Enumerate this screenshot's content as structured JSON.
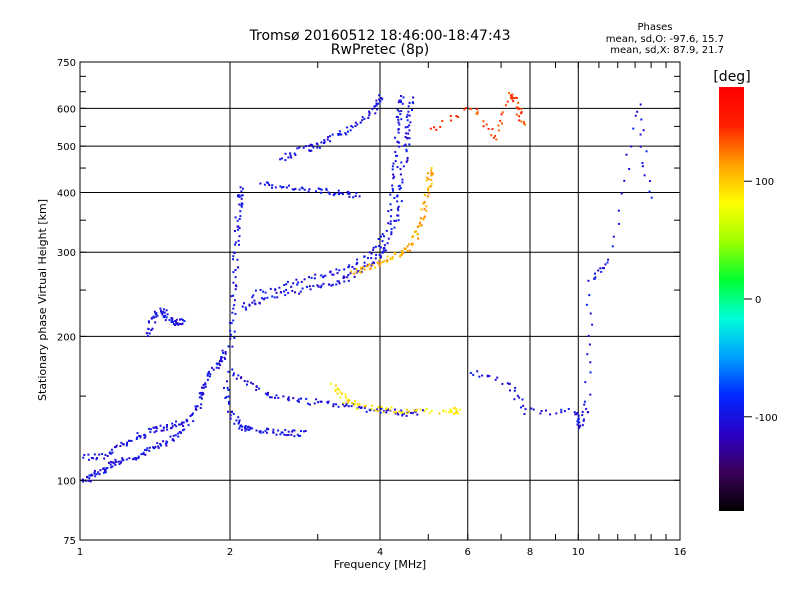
{
  "chart_data": {
    "type": "scatter",
    "title": "Tromsø 20160512 18:46:00-18:47:43",
    "subtitle": "RwPretec (8p)",
    "xlabel": "Frequency [MHz]",
    "ylabel": "Stationary phase Virtual Height [km]",
    "x_scale": "log",
    "y_scale": "log",
    "xlim": [
      1,
      16
    ],
    "ylim": [
      75,
      750
    ],
    "x_ticks": [
      "1",
      "2",
      "4",
      "6",
      "8",
      "10",
      "16"
    ],
    "y_ticks": [
      "75",
      "100",
      "200",
      "300",
      "400",
      "500",
      "600",
      "750"
    ],
    "grid": true,
    "phase_stats": {
      "heading": "Phases",
      "o_line": "mean, sd,O: -97.6, 15.7",
      "x_line": "mean, sd,X:  87.9, 21.7"
    },
    "colorbar": {
      "label": "[deg]",
      "range": [
        -180,
        180
      ],
      "ticks": [
        "100",
        "0",
        "-100"
      ],
      "colors": [
        "#000000",
        "#3b0058",
        "#2a00c8",
        "#0028ff",
        "#00a0ff",
        "#00ffd8",
        "#00ff30",
        "#a0ff00",
        "#ffff00",
        "#ffa000",
        "#ff2000",
        "#ff0000"
      ]
    },
    "traces": [
      {
        "name": "",
        "phase": -100,
        "points": [
          [
            1.0,
            100
          ],
          [
            1.05,
            102
          ],
          [
            1.1,
            105
          ],
          [
            1.15,
            108
          ],
          [
            1.2,
            110
          ],
          [
            1.3,
            113
          ],
          [
            1.4,
            117
          ],
          [
            1.5,
            121
          ],
          [
            1.6,
            128
          ],
          [
            1.7,
            140
          ],
          [
            1.75,
            152
          ],
          [
            1.8,
            165
          ],
          [
            1.9,
            178
          ],
          [
            1.95,
            185
          ]
        ]
      },
      {
        "name": "",
        "phase": -100,
        "points": [
          [
            1.0,
            112
          ],
          [
            1.1,
            113
          ],
          [
            1.2,
            118
          ],
          [
            1.3,
            124
          ],
          [
            1.4,
            128
          ],
          [
            1.5,
            130
          ],
          [
            1.6,
            133
          ]
        ]
      },
      {
        "name": "",
        "phase": -100,
        "points": [
          [
            1.35,
            200
          ],
          [
            1.4,
            220
          ],
          [
            1.45,
            228
          ],
          [
            1.5,
            218
          ],
          [
            1.55,
            215
          ],
          [
            1.6,
            216
          ]
        ]
      },
      {
        "name": "",
        "phase": -100,
        "points": [
          [
            1.95,
            160
          ],
          [
            2.0,
            138
          ],
          [
            2.1,
            130
          ],
          [
            2.2,
            128
          ],
          [
            2.4,
            127
          ],
          [
            2.6,
            126
          ],
          [
            2.8,
            126
          ]
        ]
      },
      {
        "name": "",
        "phase": -100,
        "points": [
          [
            2.0,
            170
          ],
          [
            2.2,
            158
          ],
          [
            2.5,
            150
          ],
          [
            2.8,
            147
          ],
          [
            3.2,
            145
          ],
          [
            3.6,
            143
          ],
          [
            4.0,
            140
          ],
          [
            4.4,
            139
          ],
          [
            4.8,
            139
          ]
        ]
      },
      {
        "name": "",
        "phase": -100,
        "points": [
          [
            2.0,
            190
          ],
          [
            2.02,
            230
          ],
          [
            2.04,
            280
          ],
          [
            2.06,
            330
          ],
          [
            2.08,
            380
          ],
          [
            2.1,
            410
          ]
        ]
      },
      {
        "name": "",
        "phase": -100,
        "points": [
          [
            2.1,
            230
          ],
          [
            2.3,
            240
          ],
          [
            2.6,
            248
          ],
          [
            3.0,
            255
          ],
          [
            3.3,
            262
          ],
          [
            3.6,
            272
          ],
          [
            3.9,
            288
          ],
          [
            4.1,
            310
          ],
          [
            4.3,
            360
          ],
          [
            4.4,
            420
          ],
          [
            4.5,
            500
          ],
          [
            4.55,
            560
          ],
          [
            4.6,
            630
          ]
        ]
      },
      {
        "name": "",
        "phase": -100,
        "points": [
          [
            2.2,
            245
          ],
          [
            2.6,
            258
          ],
          [
            3.0,
            268
          ],
          [
            3.4,
            278
          ],
          [
            3.8,
            295
          ],
          [
            4.1,
            330
          ],
          [
            4.25,
            420
          ],
          [
            4.3,
            500
          ],
          [
            4.35,
            580
          ],
          [
            4.4,
            640
          ]
        ]
      },
      {
        "name": "",
        "phase": -100,
        "points": [
          [
            2.5,
            470
          ],
          [
            2.8,
            495
          ],
          [
            3.0,
            505
          ],
          [
            3.3,
            530
          ],
          [
            3.6,
            560
          ],
          [
            3.9,
            600
          ],
          [
            4.0,
            640
          ]
        ]
      },
      {
        "name": "",
        "phase": -100,
        "points": [
          [
            2.3,
            420
          ],
          [
            2.6,
            410
          ],
          [
            3.0,
            405
          ],
          [
            3.3,
            400
          ],
          [
            3.6,
            395
          ]
        ]
      },
      {
        "name": "",
        "phase": 110,
        "points": [
          [
            3.5,
            275
          ],
          [
            3.8,
            280
          ],
          [
            4.1,
            290
          ],
          [
            4.4,
            300
          ],
          [
            4.6,
            310
          ],
          [
            4.8,
            340
          ],
          [
            4.9,
            380
          ],
          [
            5.0,
            420
          ],
          [
            5.05,
            450
          ]
        ]
      },
      {
        "name": "",
        "phase": 90,
        "points": [
          [
            3.2,
            160
          ],
          [
            3.4,
            148
          ],
          [
            3.6,
            143
          ],
          [
            4.1,
            141
          ],
          [
            4.6,
            140
          ],
          [
            5.5,
            141
          ],
          [
            5.7,
            140
          ]
        ]
      },
      {
        "name": "",
        "phase": 140,
        "points": [
          [
            5.05,
            540
          ],
          [
            6.1,
            610
          ],
          [
            6.8,
            520
          ],
          [
            7.3,
            650
          ],
          [
            7.5,
            610
          ],
          [
            7.7,
            555
          ]
        ]
      },
      {
        "name": "",
        "phase": -100,
        "points": [
          [
            6.0,
            170
          ],
          [
            7.2,
            160
          ],
          [
            7.8,
            140
          ],
          [
            9.8,
            140
          ],
          [
            10.0,
            130
          ],
          [
            10.4,
            145
          ],
          [
            10.5,
            260
          ],
          [
            11.5,
            290
          ],
          [
            13.2,
            610
          ],
          [
            13.8,
            390
          ]
        ]
      }
    ]
  }
}
